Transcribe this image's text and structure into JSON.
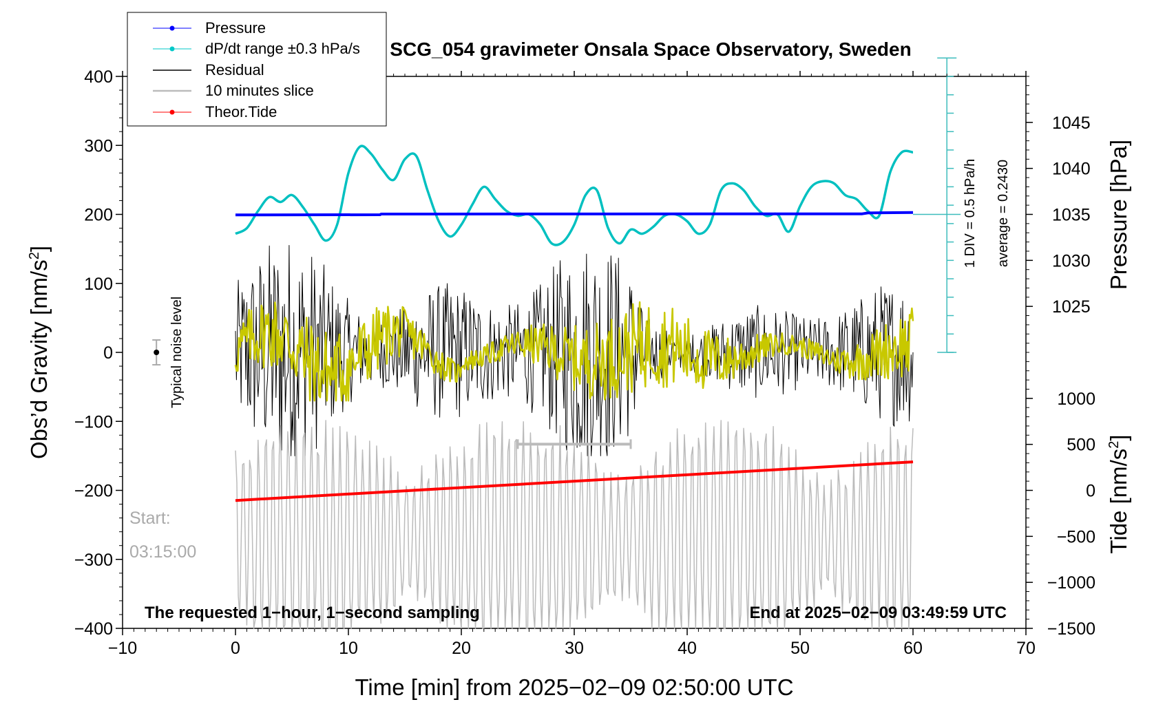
{
  "chart_data": {
    "type": "line",
    "title": "SCG_054 gravimeter Onsala Space Observatory, Sweden",
    "xlabel": "Time [min] from 2025−02−09 02:50:00 UTC",
    "ylabel_main": "Obs’d Gravity [nm/s",
    "ylabel_main_sup": "2",
    "ylabel_main_end": "]",
    "ylabel_pressure": "Pressure [hPa]",
    "ylabel_tide": "Tide [nm/s",
    "ylabel_tide_sup": "2",
    "ylabel_tide_end": "]",
    "xlim": [
      -10,
      70
    ],
    "ylim": [
      -400,
      400
    ],
    "pressure_lim": [
      1020,
      1050
    ],
    "tide_lim": [
      -1500,
      1500
    ],
    "x_ticks": [
      -10,
      0,
      10,
      20,
      30,
      40,
      50,
      60,
      70
    ],
    "x_tick_labels": [
      "−10",
      "0",
      "10",
      "20",
      "30",
      "40",
      "50",
      "60",
      "70"
    ],
    "y_ticks": [
      -400,
      -300,
      -200,
      -100,
      0,
      100,
      200,
      300,
      400
    ],
    "y_tick_labels": [
      "−400",
      "−300",
      "−200",
      "−100",
      "0",
      "100",
      "200",
      "300",
      "400"
    ],
    "pressure_ticks": [
      1025,
      1030,
      1035,
      1040,
      1045
    ],
    "pressure_tick_labels": [
      "1025",
      "1030",
      "1035",
      "1040",
      "1045"
    ],
    "tide_ticks": [
      -1500,
      -1000,
      -500,
      0,
      500,
      1000
    ],
    "tide_tick_labels": [
      "−1500",
      "−1000",
      "−500",
      "0",
      "500",
      "1000"
    ],
    "legend": {
      "placement": "top-left",
      "entries": [
        {
          "label": "Pressure",
          "color": "#0000ff",
          "marker": true
        },
        {
          "label": "dP/dt range ±0.3 hPa/s",
          "color": "#00c8c8",
          "marker": true
        },
        {
          "label": "Residual",
          "color": "#000000",
          "marker": false
        },
        {
          "label": "10 minutes slice",
          "color": "#bbbbbb",
          "marker": false
        },
        {
          "label": "Theor.Tide",
          "color": "#ff0000",
          "marker": true
        }
      ]
    },
    "annotations": {
      "noise_label": "Typical noise level",
      "div_label": "1 DIV = 0.5 hPa/h",
      "average_label": "average = 0.2430",
      "start_label": "Start:",
      "start_time": "03:15:00",
      "bottom_left": "The requested 1−hour, 1−second sampling",
      "bottom_right": "End at 2025−02−09 03:49:59 UTC"
    },
    "colors": {
      "pressure": "#0000ff",
      "dpdt": "#00c0c0",
      "residual": "#000000",
      "residual_smooth": "#c8c800",
      "slice": "#bbbbbb",
      "tide": "#ff0000",
      "scale_bar": "#3cbcbc"
    },
    "series": {
      "pressure": {
        "axis": "pressure",
        "x": [
          0,
          12.8,
          12.9,
          55.5,
          56,
          60
        ],
        "values": [
          1034.94,
          1034.96,
          1035.04,
          1035.06,
          1035.16,
          1035.2
        ]
      },
      "tide": {
        "axis": "tide",
        "x": [
          0,
          60
        ],
        "values": [
          -110,
          310
        ]
      },
      "dpdt": {
        "axis": "main",
        "x": [
          0,
          1,
          2,
          3,
          4,
          5,
          6,
          7,
          8,
          9,
          10,
          11,
          12,
          13,
          14,
          15,
          16,
          17,
          18,
          19,
          20,
          21,
          22,
          23,
          24,
          25,
          26,
          27,
          28,
          29,
          30,
          31,
          32,
          33,
          34,
          35,
          36,
          37,
          38,
          39,
          40,
          41,
          42,
          43,
          44,
          45,
          46,
          47,
          48,
          49,
          50,
          51,
          52,
          53,
          54,
          55,
          56,
          57,
          58,
          59,
          60
        ],
        "values": [
          172,
          180,
          205,
          225,
          218,
          228,
          210,
          185,
          162,
          185,
          260,
          298,
          288,
          265,
          250,
          280,
          285,
          235,
          190,
          168,
          185,
          215,
          240,
          222,
          205,
          198,
          200,
          185,
          158,
          160,
          185,
          228,
          235,
          180,
          158,
          178,
          172,
          182,
          198,
          200,
          190,
          172,
          185,
          235,
          245,
          235,
          212,
          198,
          200,
          175,
          212,
          240,
          248,
          245,
          228,
          222,
          205,
          198,
          262,
          290,
          290
        ]
      },
      "slice_window": {
        "axis": "main",
        "x": [
          25,
          35
        ],
        "y": -133
      }
    },
    "noise_bar": {
      "x": -7,
      "y": 0,
      "range": [
        -18,
        18
      ]
    },
    "scale_bar": {
      "x": 63,
      "top": 1052,
      "bottom": 1020,
      "average_line": 1035
    },
    "generated_signals": [
      {
        "name": "residual",
        "range": [
          -150,
          160
        ]
      },
      {
        "name": "residual_smooth",
        "range": [
          -70,
          75
        ]
      },
      {
        "name": "slice",
        "axis": "tide",
        "range": [
          -1500,
          760
        ]
      }
    ]
  }
}
